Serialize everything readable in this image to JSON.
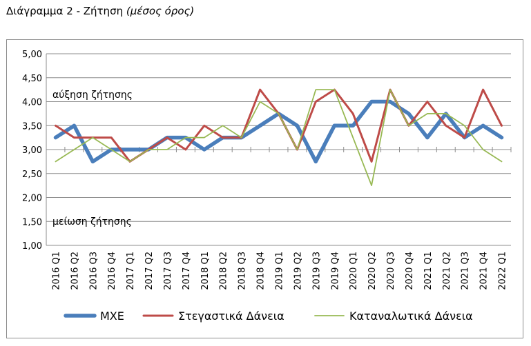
{
  "page": {
    "title_main": "Διάγραμμα 2 - Ζήτηση",
    "title_sub": "(μέσος όρος)"
  },
  "chart_data": {
    "type": "line",
    "categories": [
      "2016 Q1",
      "2016 Q2",
      "2016 Q3",
      "2016 Q4",
      "2017 Q1",
      "2017 Q2",
      "2017 Q3",
      "2017 Q4",
      "2018 Q1",
      "2018 Q2",
      "2018 Q3",
      "2018 Q4",
      "2019 Q1",
      "2019 Q2",
      "2019 Q3",
      "2019 Q4",
      "2020 Q1",
      "2020 Q2",
      "2020 Q3",
      "2020 Q4",
      "2021 Q1",
      "2021 Q2",
      "2021 Q3",
      "2021 Q4",
      "2022 Q1"
    ],
    "series": [
      {
        "name": "ΜΧΕ",
        "color": "#4a7ebb",
        "values": [
          3.25,
          3.5,
          2.75,
          3.0,
          3.0,
          3.0,
          3.25,
          3.25,
          3.0,
          3.25,
          3.25,
          3.5,
          3.75,
          3.5,
          2.75,
          3.5,
          3.5,
          4.0,
          4.0,
          3.75,
          3.25,
          3.75,
          3.25,
          3.5,
          3.25
        ]
      },
      {
        "name": "Στεγαστικά Δάνεια",
        "color": "#be4b48",
        "values": [
          3.5,
          3.25,
          3.25,
          3.25,
          2.75,
          3.0,
          3.25,
          3.0,
          3.5,
          3.25,
          3.25,
          4.25,
          3.75,
          3.0,
          4.0,
          4.25,
          3.75,
          2.75,
          4.25,
          3.5,
          4.0,
          3.5,
          3.25,
          4.25,
          3.5
        ]
      },
      {
        "name": "Καταναλωτικά Δάνεια",
        "color": "#98b954",
        "values": [
          2.75,
          3.0,
          3.25,
          3.0,
          2.75,
          3.0,
          3.0,
          3.25,
          3.25,
          3.5,
          3.25,
          4.0,
          3.75,
          3.0,
          4.25,
          4.25,
          3.25,
          2.25,
          4.25,
          3.5,
          3.75,
          3.75,
          3.5,
          3.0,
          2.75
        ]
      }
    ],
    "ylim": [
      1.0,
      5.0
    ],
    "yticks": [
      "1,00",
      "1,50",
      "2,00",
      "2,50",
      "3,00",
      "3,50",
      "4,00",
      "4,50",
      "5,00"
    ],
    "grid": true,
    "legend": "bottom",
    "annotations": [
      "αύξηση ζήτησης",
      "μείωση ζήτησης"
    ]
  }
}
